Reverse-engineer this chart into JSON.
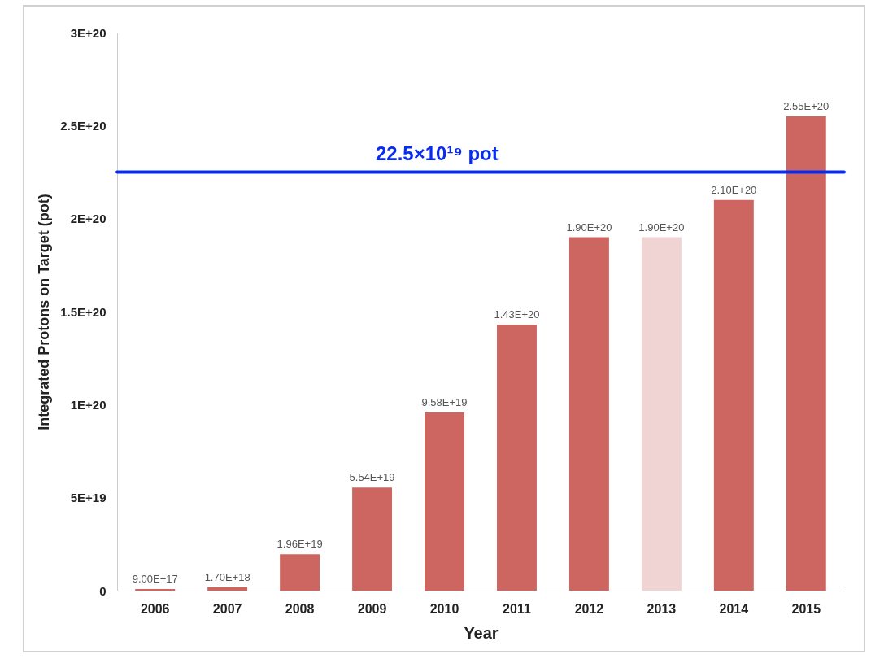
{
  "chart_data": {
    "type": "bar",
    "xlabel": "Year",
    "ylabel": "Integrated Protons on Target (pot)",
    "categories": [
      "2006",
      "2007",
      "2008",
      "2009",
      "2010",
      "2011",
      "2012",
      "2013",
      "2014",
      "2015"
    ],
    "values": [
      9e+17,
      1.7e+18,
      1.96e+19,
      5.54e+19,
      9.58e+19,
      1.43e+20,
      1.9e+20,
      1.9e+20,
      2.1e+20,
      2.55e+20
    ],
    "value_labels": [
      "9.00E+17",
      "1.70E+18",
      "1.96E+19",
      "5.54E+19",
      "9.58E+19",
      "1.43E+20",
      "1.90E+20",
      "1.90E+20",
      "2.10E+20",
      "2.55E+20"
    ],
    "colors": [
      "#cd6660",
      "#cd6660",
      "#cd6660",
      "#cd6660",
      "#cd6660",
      "#cd6660",
      "#cd6660",
      "#f0d4d4",
      "#cd6660",
      "#cd6660"
    ],
    "ylim": [
      0,
      3e+20
    ],
    "yticks": [
      0,
      {
        "value": 5e+19,
        "label": "5E+19"
      },
      {
        "value": 1e+20,
        "label": "1E+20"
      },
      {
        "value": 1.5e+20,
        "label": "1.5E+20"
      },
      {
        "value": 2e+20,
        "label": "2E+20"
      },
      {
        "value": 2.5e+20,
        "label": "2.5E+20"
      },
      {
        "value": 3e+20,
        "label": "3E+20"
      }
    ],
    "ref_lines": [
      {
        "axis": "y",
        "value": 2.25e+20,
        "label": "22.5×10¹⁹ pot",
        "color": "#0a2cf0"
      }
    ]
  }
}
